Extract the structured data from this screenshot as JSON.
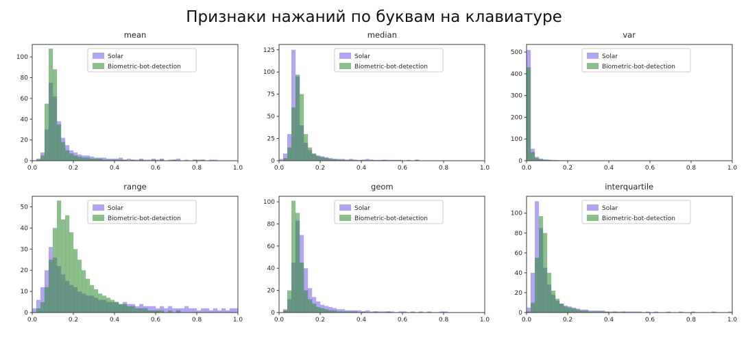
{
  "figure": {
    "title": "Признаки нажаний по буквам на клавиатуре"
  },
  "colors": {
    "solar_fill": "rgba(92,66,232,0.48)",
    "biometric_fill": "rgba(44,139,44,0.55)",
    "spine": "#3a3a3a",
    "tick_label": "#262626",
    "legend_border": "#cccccc"
  },
  "chart_data": [
    {
      "type": "histogram",
      "title": "mean",
      "xlim": [
        0,
        1
      ],
      "ylim": [
        0,
        112
      ],
      "yticks": [
        0,
        20,
        40,
        60,
        80,
        100
      ],
      "xticks": [
        0,
        0.2,
        0.4,
        0.6,
        0.8,
        1.0
      ],
      "bin_start": 0,
      "bin_width": 0.02,
      "legend_position": "upper center",
      "series": [
        {
          "name": "Solar",
          "fill": "rgba(92,66,232,0.48)",
          "values": [
            0,
            2,
            8,
            30,
            75,
            62,
            38,
            22,
            15,
            10,
            8,
            6,
            5,
            5,
            4,
            3,
            3,
            3,
            2,
            2,
            2,
            3,
            1,
            2,
            1,
            1,
            2,
            1,
            1,
            2,
            1,
            2,
            0,
            1,
            1,
            2,
            0,
            1,
            0,
            1,
            1,
            1,
            0,
            1,
            1
          ]
        },
        {
          "name": "Biometric-bot-detection",
          "fill": "rgba(44,139,44,0.55)",
          "values": [
            0,
            1,
            5,
            55,
            108,
            88,
            35,
            18,
            10,
            7,
            5,
            4,
            3,
            3,
            2,
            2,
            2,
            1,
            1,
            1,
            1,
            1,
            1,
            0,
            1,
            0,
            1,
            0,
            0,
            1,
            0,
            1,
            0,
            0,
            1,
            0,
            0,
            0,
            0,
            1,
            0,
            1
          ]
        }
      ]
    },
    {
      "type": "histogram",
      "title": "median",
      "xlim": [
        0,
        1
      ],
      "ylim": [
        0,
        131
      ],
      "yticks": [
        0,
        25,
        50,
        75,
        100,
        125
      ],
      "xticks": [
        0,
        0.2,
        0.4,
        0.6,
        0.8,
        1.0
      ],
      "bin_start": 0,
      "bin_width": 0.02,
      "legend_position": "upper center",
      "series": [
        {
          "name": "Solar",
          "fill": "rgba(92,66,232,0.48)",
          "values": [
            2,
            8,
            30,
            125,
            95,
            40,
            20,
            12,
            8,
            6,
            5,
            4,
            3,
            2,
            2,
            2,
            1,
            2,
            1,
            1,
            1,
            2,
            1,
            1,
            1,
            1,
            1,
            1,
            0,
            1,
            0,
            1,
            0,
            1
          ]
        },
        {
          "name": "Biometric-bot-detection",
          "fill": "rgba(44,139,44,0.55)",
          "values": [
            0,
            3,
            15,
            60,
            97,
            75,
            30,
            15,
            8,
            5,
            4,
            3,
            2,
            2,
            1,
            1,
            1,
            1,
            1,
            0,
            1,
            0,
            1,
            0,
            0,
            1,
            0,
            0,
            1,
            0,
            0,
            0,
            0,
            1
          ]
        }
      ]
    },
    {
      "type": "histogram",
      "title": "var",
      "xlim": [
        0,
        1
      ],
      "ylim": [
        0,
        535
      ],
      "yticks": [
        0,
        100,
        200,
        300,
        400,
        500
      ],
      "xticks": [
        0,
        0.2,
        0.4,
        0.6,
        0.8,
        1.0
      ],
      "bin_start": 0,
      "bin_width": 0.02,
      "legend_position": "upper center",
      "series": [
        {
          "name": "Solar",
          "fill": "rgba(92,66,232,0.48)",
          "values": [
            510,
            55,
            18,
            10,
            6,
            5,
            4,
            3,
            2,
            2,
            2,
            1,
            1,
            1,
            1,
            1,
            1,
            1,
            0,
            1,
            0,
            1,
            0,
            0,
            1
          ]
        },
        {
          "name": "Biometric-bot-detection",
          "fill": "rgba(44,139,44,0.55)",
          "values": [
            430,
            40,
            12,
            6,
            4,
            3,
            2,
            2,
            1,
            1,
            1,
            1,
            0,
            1,
            0,
            1,
            0,
            0,
            1
          ]
        }
      ]
    },
    {
      "type": "histogram",
      "title": "range",
      "xlim": [
        0,
        1
      ],
      "ylim": [
        0,
        55
      ],
      "yticks": [
        0,
        10,
        20,
        30,
        40,
        50
      ],
      "xticks": [
        0,
        0.2,
        0.4,
        0.6,
        0.8,
        1.0
      ],
      "bin_start": 0,
      "bin_width": 0.02,
      "legend_position": "upper center",
      "series": [
        {
          "name": "Solar",
          "fill": "rgba(92,66,232,0.48)",
          "values": [
            2,
            6,
            12,
            20,
            31,
            26,
            22,
            18,
            15,
            13,
            12,
            10,
            9,
            8,
            8,
            7,
            6,
            6,
            5,
            5,
            5,
            4,
            5,
            4,
            4,
            3,
            4,
            3,
            3,
            3,
            2,
            3,
            2,
            3,
            2,
            2,
            2,
            3,
            2,
            2,
            1,
            2,
            2,
            1,
            2,
            1,
            2,
            1,
            2,
            2
          ]
        },
        {
          "name": "Biometric-bot-detection",
          "fill": "rgba(44,139,44,0.55)",
          "values": [
            0,
            2,
            5,
            12,
            25,
            40,
            53,
            44,
            46,
            38,
            30,
            25,
            20,
            16,
            13,
            11,
            9,
            8,
            7,
            6,
            5,
            4,
            4,
            3,
            3,
            2,
            2,
            2,
            1,
            1,
            1,
            1,
            0,
            1,
            0,
            1
          ]
        }
      ]
    },
    {
      "type": "histogram",
      "title": "geom",
      "xlim": [
        0,
        1
      ],
      "ylim": [
        0,
        105
      ],
      "yticks": [
        0,
        20,
        40,
        60,
        80,
        100
      ],
      "xticks": [
        0,
        0.2,
        0.4,
        0.6,
        0.8,
        1.0
      ],
      "bin_start": 0,
      "bin_width": 0.02,
      "legend_position": "upper center",
      "series": [
        {
          "name": "Solar",
          "fill": "rgba(92,66,232,0.48)",
          "values": [
            0,
            3,
            12,
            45,
            83,
            70,
            40,
            22,
            14,
            10,
            7,
            6,
            5,
            4,
            3,
            3,
            2,
            2,
            2,
            2,
            1,
            2,
            1,
            1,
            1,
            1,
            1,
            1,
            0,
            1,
            1,
            0,
            1,
            0,
            1,
            0,
            1,
            0,
            0,
            1,
            1
          ]
        },
        {
          "name": "Biometric-bot-detection",
          "fill": "rgba(44,139,44,0.55)",
          "values": [
            0,
            2,
            20,
            101,
            90,
            45,
            20,
            12,
            8,
            5,
            4,
            3,
            2,
            2,
            1,
            1,
            1,
            1,
            1,
            0,
            1,
            0,
            0,
            1,
            0,
            0,
            1
          ]
        }
      ]
    },
    {
      "type": "histogram",
      "title": "interquartile",
      "xlim": [
        0,
        1
      ],
      "ylim": [
        0,
        117
      ],
      "yticks": [
        0,
        20,
        40,
        60,
        80,
        100
      ],
      "xticks": [
        0,
        0.2,
        0.4,
        0.6,
        0.8,
        1.0
      ],
      "bin_start": 0,
      "bin_width": 0.02,
      "legend_position": "upper center",
      "series": [
        {
          "name": "Solar",
          "fill": "rgba(92,66,232,0.48)",
          "values": [
            5,
            40,
            112,
            85,
            45,
            28,
            18,
            12,
            9,
            7,
            6,
            5,
            4,
            3,
            3,
            2,
            2,
            2,
            2,
            1,
            1,
            1,
            1,
            1,
            1,
            1,
            0,
            1,
            0,
            1,
            0,
            1,
            0,
            0,
            1,
            0,
            0,
            1,
            0,
            0,
            1,
            0,
            0,
            0,
            0,
            1,
            0,
            0,
            0,
            1
          ]
        },
        {
          "name": "Biometric-bot-detection",
          "fill": "rgba(44,139,44,0.55)",
          "values": [
            1,
            10,
            55,
            97,
            80,
            40,
            22,
            14,
            9,
            6,
            5,
            4,
            3,
            2,
            2,
            1,
            1,
            1,
            1,
            1,
            0,
            1,
            0,
            1,
            0,
            0,
            1
          ]
        }
      ]
    }
  ]
}
